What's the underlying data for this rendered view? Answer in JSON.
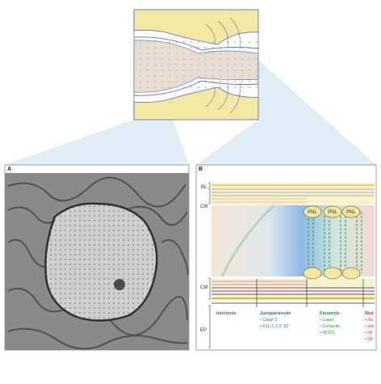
{
  "panels": {
    "a": {
      "letter": "A"
    },
    "b": {
      "letter": "B"
    }
  },
  "layer_labels": {
    "bl": "BL",
    "cm_top": "CM",
    "cm_bottom": "CM",
    "ep": "EP"
  },
  "pnl_labels": [
    "PNL",
    "PNL",
    "PNL"
  ],
  "domains": {
    "internode": {
      "title": "Internode",
      "items": []
    },
    "juxtaparanode": {
      "title": "Juxtaparanode",
      "items": [
        "• Caspr 2",
        "• Kv1.1, 1.2, β2"
      ]
    },
    "paranode": {
      "title": "Paranode",
      "items": [
        "• Caspr",
        "• Contactin",
        "• NF155"
      ]
    },
    "node": {
      "title": "Nod",
      "items": [
        "• Na",
        "• ank",
        "• NF",
        "• NF"
      ]
    }
  },
  "colors": {
    "internode": "#5a6e8a",
    "juxtaparanode": "#2f6fb7",
    "paranode": "#1f9a4a",
    "node": "#e0312b",
    "myelin_yellow": "#f3e7a2",
    "axon_blue": "#9fc1e6",
    "connector": "#d6e8f6"
  }
}
